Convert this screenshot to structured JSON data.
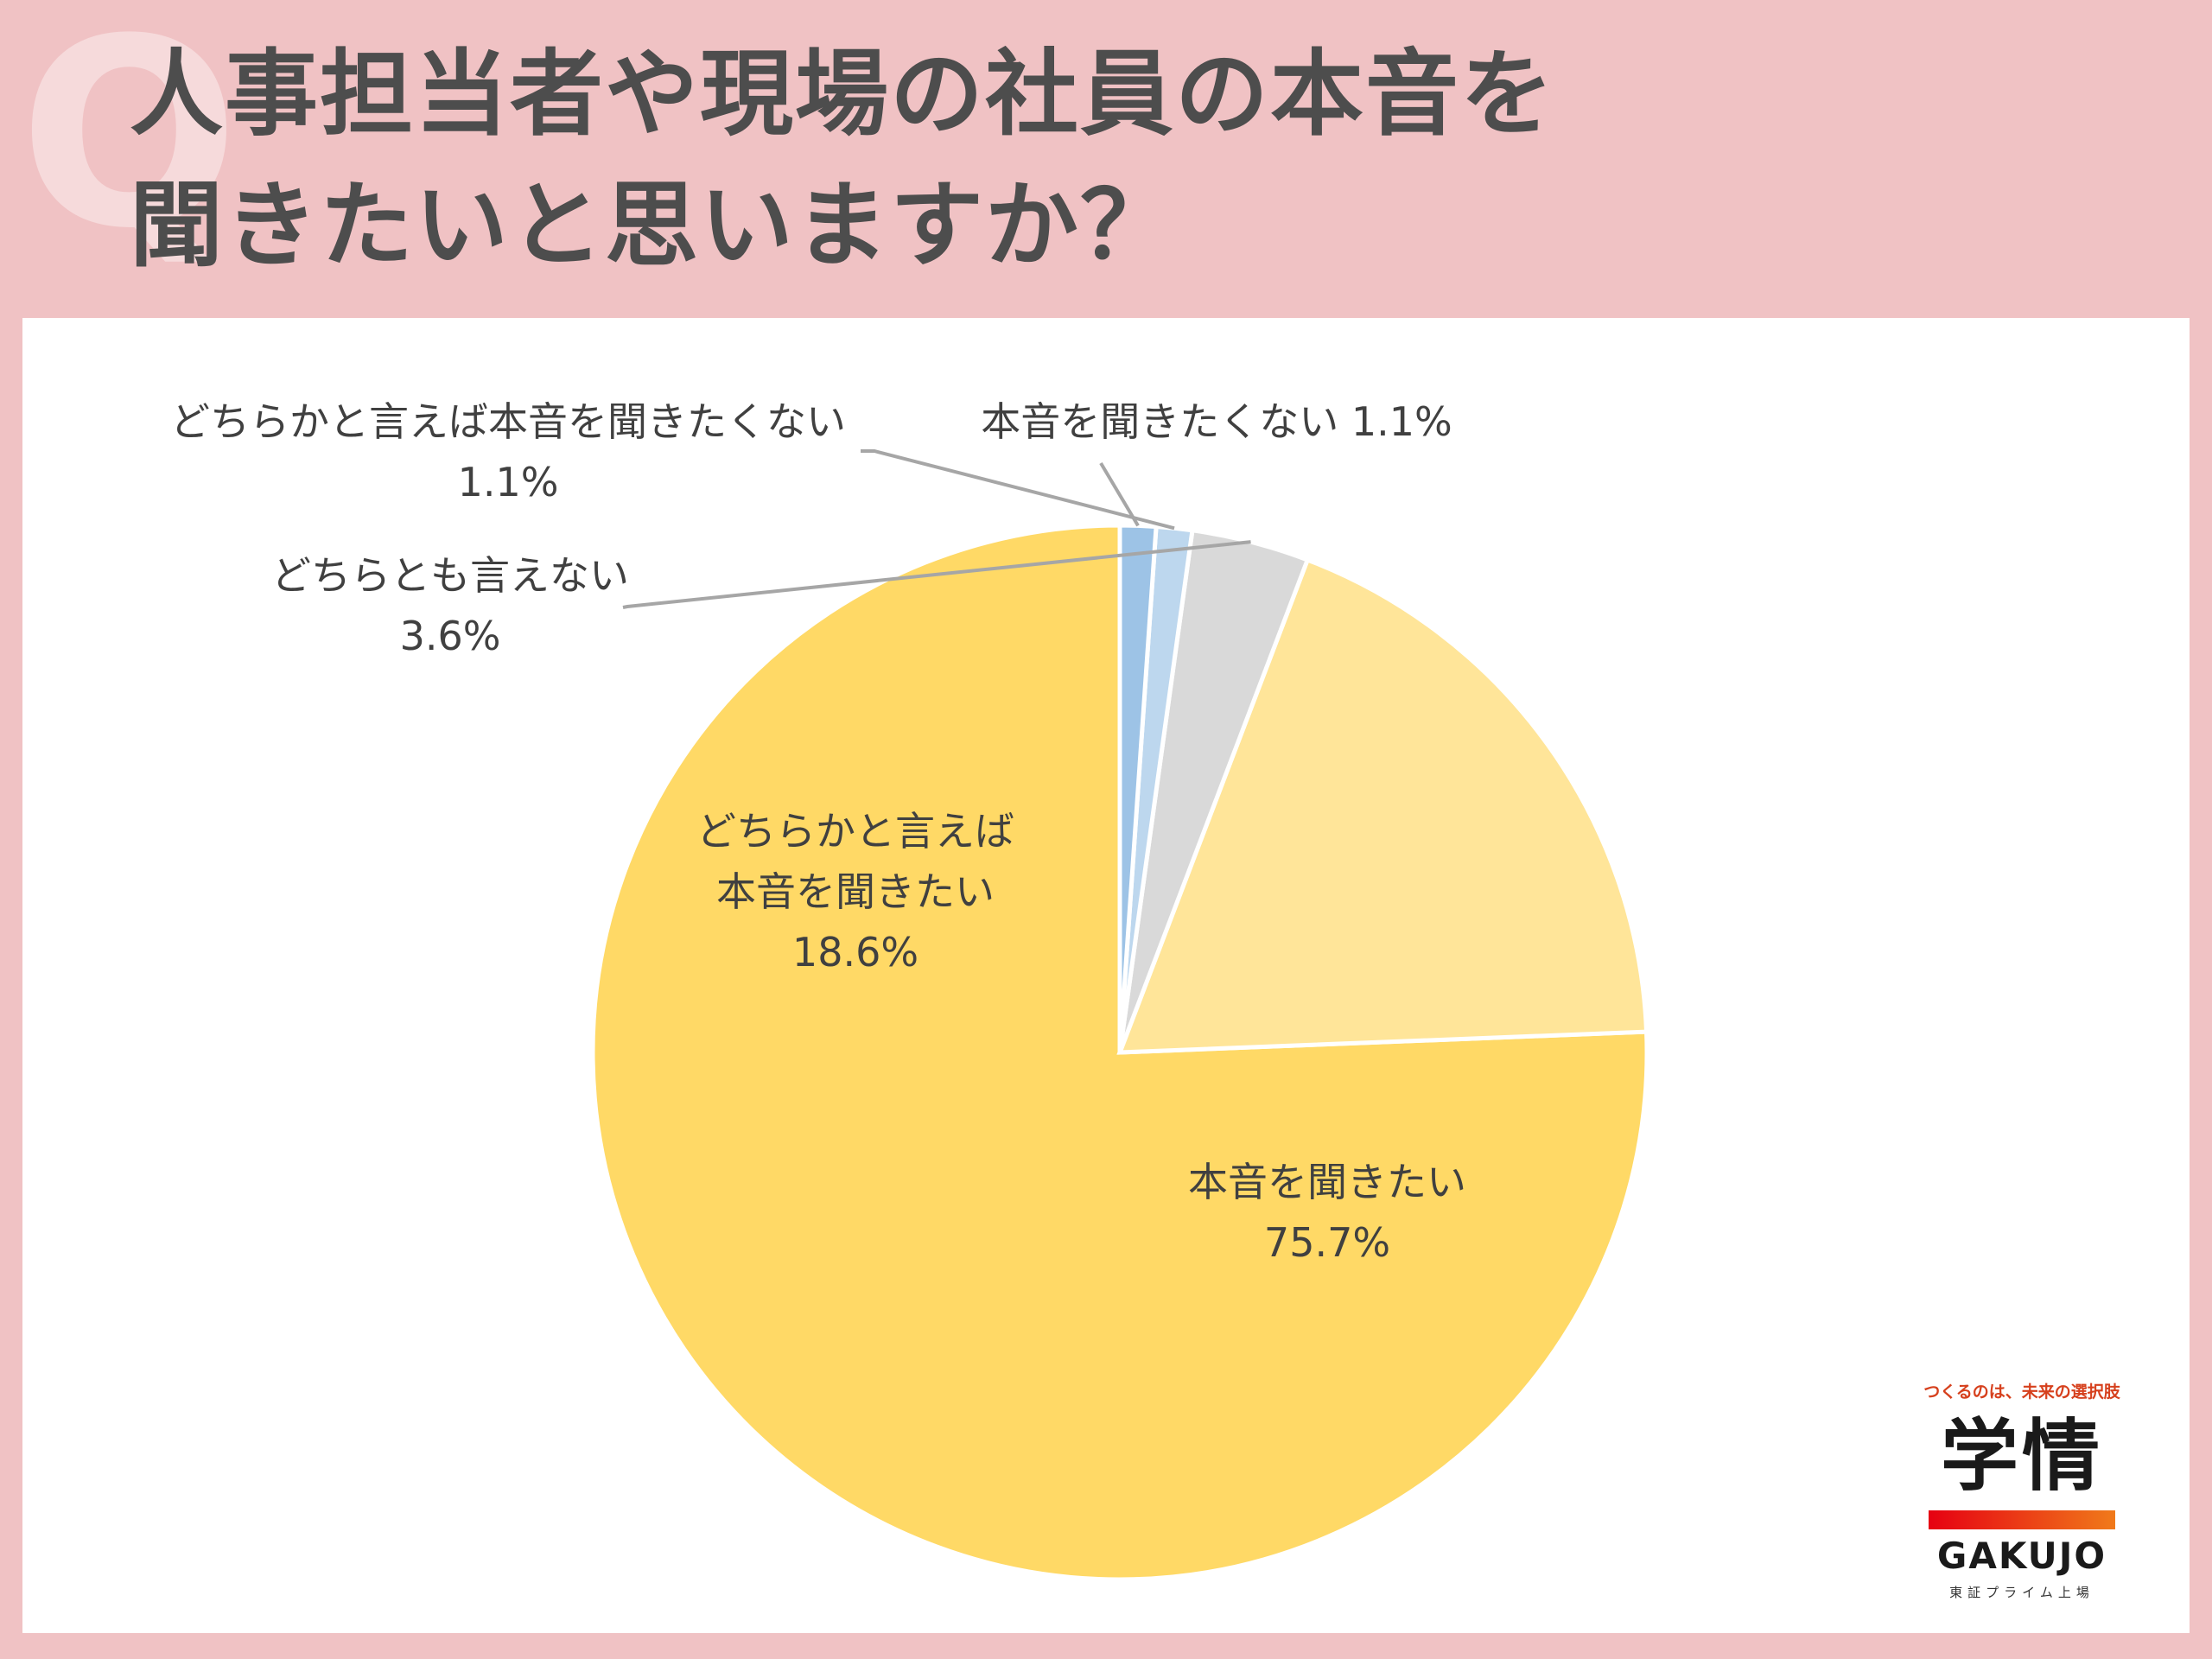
{
  "title": {
    "line1": "人事担当者や現場の社員の本音を",
    "line2": "聞きたいと思いますか？",
    "decor_letter": "Q"
  },
  "chart_data": {
    "type": "pie",
    "start_angle_deg": 0,
    "direction": "counterclockwise",
    "slices": [
      {
        "label": "本音を聞きたい",
        "value": 75.7,
        "display": "75.7%",
        "color": "#ffd966"
      },
      {
        "label": "どちらかと言えば本音を聞きたい",
        "value": 18.6,
        "display": "18.6%",
        "color": "#ffe599"
      },
      {
        "label": "どちらとも言えない",
        "value": 3.6,
        "display": "3.6%",
        "color": "#d9d9d9"
      },
      {
        "label": "どちらかと言えば本音を聞きたくない",
        "value": 1.1,
        "display": "1.1%",
        "color": "#bdd7ee"
      },
      {
        "label": "本音を聞きたくない",
        "value": 1.1,
        "display": "1.1%",
        "color": "#9dc3e6"
      }
    ],
    "labels": {
      "s0": {
        "line1": "本音を聞きたい",
        "line2": "75.7%"
      },
      "s1": {
        "line1": "どちらかと言えば",
        "line2": "本音を聞きたい",
        "line3": "18.6%"
      },
      "s2": {
        "line1": "どちらとも言えない",
        "line2": "3.6%"
      },
      "s3": {
        "line1": "どちらかと言えば本音を聞きたくない",
        "line2": "1.1%"
      },
      "s4": {
        "line1": "本音を聞きたくない 1.1%"
      }
    },
    "leader_line_color": "#a6a6a6",
    "label_text_color": "#404040"
  },
  "logo": {
    "tagline": "つくるのは、未来の選択肢",
    "kanji": "学情",
    "latin": "GAKUJO",
    "listing": "東証プライム上場"
  }
}
